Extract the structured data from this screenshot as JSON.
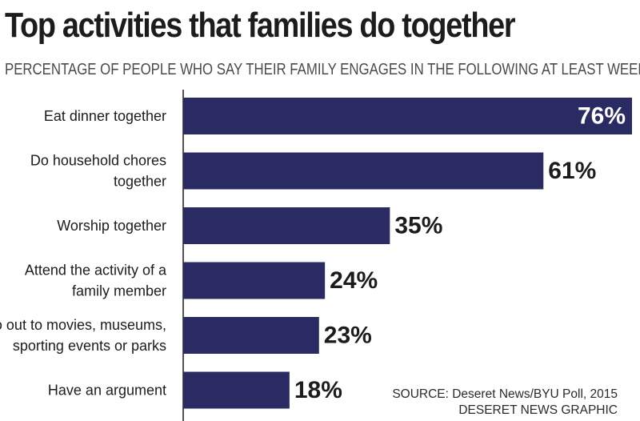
{
  "chart_data": {
    "type": "bar",
    "orientation": "horizontal",
    "title": "Top activities that families do together",
    "subtitle": "PERCENTAGE OF PEOPLE WHO SAY THEIR FAMILY ENGAGES IN THE FOLLOWING AT LEAST WEEKLY",
    "categories": [
      [
        "Eat dinner together"
      ],
      [
        "Do household chores",
        "together"
      ],
      [
        "Worship together"
      ],
      [
        "Attend the activity of a",
        "family member"
      ],
      [
        "Go out to movies, museums,",
        "sporting events or parks"
      ],
      [
        "Have an argument"
      ]
    ],
    "values": [
      76,
      61,
      35,
      24,
      23,
      18
    ],
    "value_labels": [
      "76%",
      "61%",
      "35%",
      "24%",
      "23%",
      "18%"
    ],
    "xlim": [
      0,
      76
    ],
    "grid": false,
    "legend": "none",
    "colors": {
      "bar": "#2b2b63",
      "axis": "#1c1c1c"
    }
  },
  "source": "SOURCE: Deseret News/BYU Poll, 2015",
  "credit": "DESERET NEWS GRAPHIC"
}
